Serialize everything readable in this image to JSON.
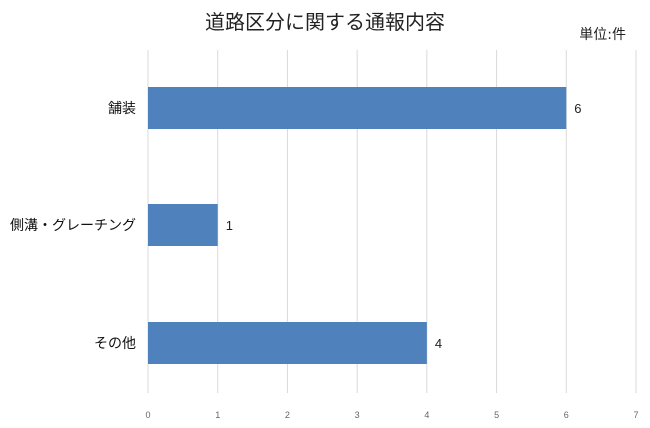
{
  "chart_data": {
    "type": "bar",
    "orientation": "horizontal",
    "title": "道路区分に関する通報内容",
    "unit_label": "単位:件",
    "categories": [
      "舗装",
      "側溝・グレーチング",
      "その他"
    ],
    "values": [
      6,
      1,
      4
    ],
    "xlim": [
      0,
      7
    ],
    "ticks": [
      "0",
      "1",
      "2",
      "3",
      "4",
      "5",
      "6",
      "7"
    ],
    "bar_color": "#4f81bd",
    "grid": true,
    "legend": "none"
  }
}
